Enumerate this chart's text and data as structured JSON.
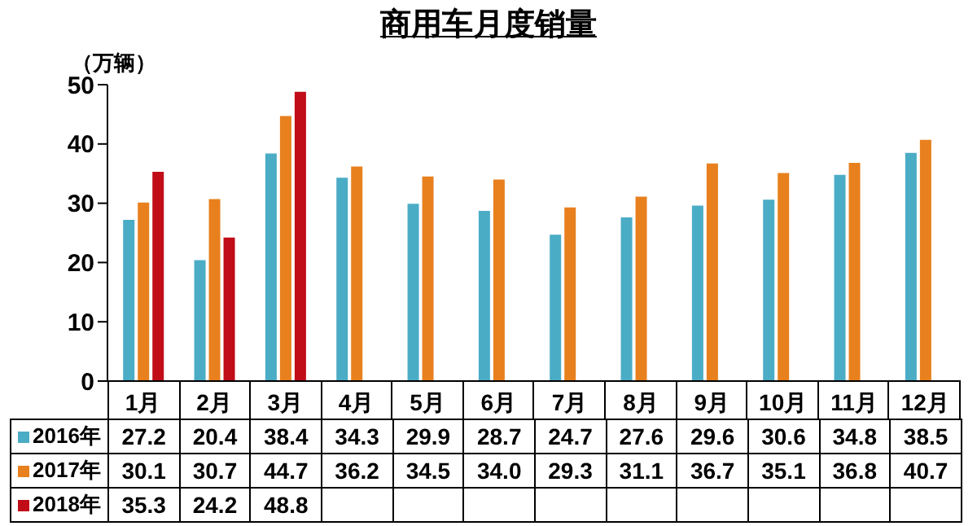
{
  "chart_data": {
    "type": "bar",
    "title": "商用车月度销量",
    "ylabel": "（万辆）",
    "categories": [
      "1月",
      "2月",
      "3月",
      "4月",
      "5月",
      "6月",
      "7月",
      "8月",
      "9月",
      "10月",
      "11月",
      "12月"
    ],
    "series": [
      {
        "name": "2016年",
        "color": "#4bacc6",
        "values": [
          27.2,
          20.4,
          38.4,
          34.3,
          29.9,
          28.7,
          24.7,
          27.6,
          29.6,
          30.6,
          34.8,
          38.5
        ],
        "value_labels": [
          "27.2",
          "20.4",
          "38.4",
          "34.3",
          "29.9",
          "28.7",
          "24.7",
          "27.6",
          "29.6",
          "30.6",
          "34.8",
          "38.5"
        ]
      },
      {
        "name": "2017年",
        "color": "#e8801e",
        "values": [
          30.1,
          30.7,
          44.7,
          36.2,
          34.5,
          34.0,
          29.3,
          31.1,
          36.7,
          35.1,
          36.8,
          40.7
        ],
        "value_labels": [
          "30.1",
          "30.7",
          "44.7",
          "36.2",
          "34.5",
          "34.0",
          "29.3",
          "31.1",
          "36.7",
          "35.1",
          "36.8",
          "40.7"
        ]
      },
      {
        "name": "2018年",
        "color": "#c00d17",
        "values": [
          35.3,
          24.2,
          48.8,
          null,
          null,
          null,
          null,
          null,
          null,
          null,
          null,
          null
        ],
        "value_labels": [
          "35.3",
          "24.2",
          "48.8",
          null,
          null,
          null,
          null,
          null,
          null,
          null,
          null,
          null
        ]
      }
    ],
    "ylim": [
      0,
      50
    ],
    "yticks": [
      0,
      10,
      20,
      30,
      40,
      50
    ],
    "grid": false,
    "legend": "bottom"
  }
}
